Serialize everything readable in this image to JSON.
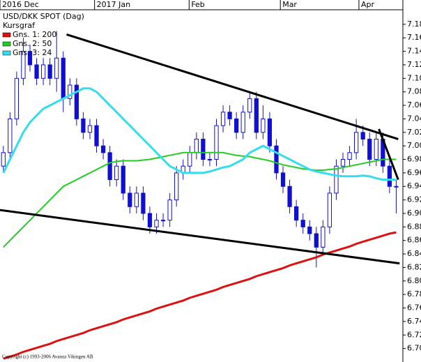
{
  "chart_data": {
    "type": "candlestick",
    "title": "USD/DKK SPOT (Dag)",
    "subtitle": "Kursgraf",
    "footer": "Copyright (c) 1993-2006 Avanza Vikingen AB",
    "xlim": [
      -0.5,
      60
    ],
    "x_labels": [
      {
        "value": -0.5,
        "label": "2016 Dec"
      },
      {
        "value": 13.7,
        "label": "2017 Jan"
      },
      {
        "value": 27.9,
        "label": "Feb"
      },
      {
        "value": 41.6,
        "label": "Mar"
      },
      {
        "value": 53.4,
        "label": "Apr"
      }
    ],
    "ylim": [
      6.68,
      7.216
    ],
    "yticks": [
      {
        "value": 6.7,
        "label": "6.70"
      },
      6.72,
      6.74,
      6.76,
      6.78,
      {
        "value": 6.8,
        "label": "6.80"
      },
      6.82,
      6.84,
      6.86,
      6.88,
      {
        "value": 6.9,
        "label": "6.90"
      },
      6.92,
      6.94,
      6.96,
      6.98,
      {
        "value": 7,
        "label": "7.00"
      },
      7.02,
      7.04,
      7.06,
      7.08,
      {
        "value": 7.1,
        "label": "7.10"
      },
      7.12,
      7.14,
      7.16,
      7.18
    ],
    "up_color": "#ffffff",
    "down_color": "#1010d0",
    "edge_color": "#1010d0",
    "open": [
      6.97,
      6.99,
      7.04,
      7.1,
      7.14,
      7.12,
      7.1,
      7.12,
      7.1,
      7.13,
      7.07,
      7.09,
      7.04,
      7.02,
      7.03,
      7.0,
      6.99,
      6.95,
      6.97,
      6.93,
      6.91,
      6.93,
      6.9,
      6.88,
      6.89,
      6.89,
      6.92,
      6.96,
      6.97,
      6.99,
      7.01,
      6.98,
      6.98,
      7.03,
      7.05,
      7.04,
      7.02,
      7.05,
      7.07,
      7.02,
      7.04,
      7.0,
      6.96,
      6.94,
      6.91,
      6.89,
      6.88,
      6.87,
      6.85,
      6.88,
      6.93,
      6.97,
      6.98,
      6.99,
      7.02,
      7.01,
      6.98,
      7.01,
      6.97,
      6.94
    ],
    "high": [
      7.0,
      7.05,
      7.11,
      7.16,
      7.15,
      7.13,
      7.13,
      7.13,
      7.17,
      7.14,
      7.1,
      7.1,
      7.05,
      7.04,
      7.04,
      7.01,
      7.0,
      6.98,
      6.98,
      6.94,
      6.94,
      6.94,
      6.91,
      6.9,
      6.9,
      6.93,
      6.97,
      6.98,
      7.0,
      7.02,
      7.02,
      6.99,
      7.04,
      7.06,
      7.06,
      7.05,
      7.06,
      7.08,
      7.08,
      7.06,
      7.05,
      7.01,
      6.97,
      6.95,
      6.92,
      6.9,
      6.89,
      6.88,
      6.89,
      6.94,
      6.98,
      6.99,
      7.0,
      7.04,
      7.03,
      7.02,
      7.02,
      7.02,
      6.98,
      6.95
    ],
    "low": [
      6.96,
      6.98,
      7.03,
      7.09,
      7.11,
      7.09,
      7.09,
      7.09,
      7.08,
      7.05,
      7.06,
      7.03,
      7.01,
      7.01,
      6.99,
      6.98,
      6.94,
      6.94,
      6.92,
      6.9,
      6.9,
      6.89,
      6.87,
      6.87,
      6.88,
      6.88,
      6.91,
      6.95,
      6.96,
      6.98,
      6.97,
      6.97,
      6.97,
      7.02,
      7.03,
      7.01,
      7.01,
      7.04,
      7.01,
      7.01,
      6.99,
      6.95,
      6.93,
      6.9,
      6.88,
      6.87,
      6.86,
      6.82,
      6.84,
      6.87,
      6.92,
      6.96,
      6.97,
      6.98,
      7.0,
      6.97,
      6.97,
      6.96,
      6.93,
      6.9
    ],
    "close": [
      6.99,
      7.04,
      7.1,
      7.14,
      7.12,
      7.1,
      7.12,
      7.1,
      7.13,
      7.07,
      7.09,
      7.04,
      7.02,
      7.03,
      7.0,
      6.99,
      6.95,
      6.97,
      6.93,
      6.91,
      6.93,
      6.9,
      6.88,
      6.89,
      6.89,
      6.92,
      6.96,
      6.97,
      6.99,
      7.01,
      6.98,
      6.98,
      7.03,
      7.05,
      7.04,
      7.02,
      7.05,
      7.07,
      7.02,
      7.04,
      7.0,
      6.96,
      6.94,
      6.91,
      6.89,
      6.88,
      6.87,
      6.85,
      6.88,
      6.93,
      6.97,
      6.98,
      6.99,
      7.02,
      7.01,
      6.98,
      7.01,
      6.97,
      6.94,
      6.94
    ],
    "series": [
      {
        "name": "Gns. 1: 200",
        "color": "#dd1111",
        "width": 3,
        "values": [
          6.685,
          6.688,
          6.691,
          6.695,
          6.698,
          6.701,
          6.704,
          6.707,
          6.711,
          6.714,
          6.717,
          6.72,
          6.723,
          6.727,
          6.73,
          6.733,
          6.736,
          6.739,
          6.743,
          6.746,
          6.749,
          6.752,
          6.755,
          6.759,
          6.762,
          6.765,
          6.768,
          6.771,
          6.775,
          6.778,
          6.781,
          6.784,
          6.787,
          6.791,
          6.794,
          6.797,
          6.8,
          6.803,
          6.807,
          6.81,
          6.813,
          6.816,
          6.819,
          6.823,
          6.826,
          6.829,
          6.832,
          6.835,
          6.839,
          6.842,
          6.845,
          6.848,
          6.851,
          6.855,
          6.858,
          6.861,
          6.864,
          6.867,
          6.87,
          6.872
        ]
      },
      {
        "name": "Gns. 2: 50",
        "color": "#22cc22",
        "width": 2,
        "values": [
          6.85,
          6.86,
          6.87,
          6.88,
          6.89,
          6.9,
          6.91,
          6.92,
          6.93,
          6.94,
          6.945,
          6.95,
          6.955,
          6.96,
          6.965,
          6.97,
          6.975,
          6.977,
          6.978,
          6.978,
          6.978,
          6.979,
          6.98,
          6.982,
          6.984,
          6.986,
          6.988,
          6.99,
          6.99,
          6.99,
          6.99,
          6.99,
          6.99,
          6.99,
          6.988,
          6.986,
          6.985,
          6.984,
          6.982,
          6.98,
          6.978,
          6.975,
          6.972,
          6.97,
          6.968,
          6.966,
          6.965,
          6.964,
          6.964,
          6.965,
          6.966,
          6.968,
          6.97,
          6.972,
          6.974,
          6.976,
          6.978,
          6.98,
          6.98,
          6.98
        ]
      },
      {
        "name": "Gns. 3: 24",
        "color": "#33ddee",
        "width": 3,
        "values": [
          6.96,
          6.98,
          7.0,
          7.02,
          7.035,
          7.045,
          7.055,
          7.06,
          7.065,
          7.07,
          7.075,
          7.08,
          7.085,
          7.085,
          7.08,
          7.07,
          7.06,
          7.05,
          7.04,
          7.03,
          7.02,
          7.01,
          7.0,
          6.99,
          6.98,
          6.97,
          6.965,
          6.96,
          6.96,
          6.96,
          6.96,
          6.962,
          6.965,
          6.968,
          6.97,
          6.975,
          6.98,
          6.99,
          6.995,
          7.0,
          6.995,
          6.99,
          6.985,
          6.98,
          6.975,
          6.97,
          6.965,
          6.962,
          6.96,
          6.958,
          6.956,
          6.955,
          6.955,
          6.955,
          6.956,
          6.955,
          6.952,
          6.95,
          6.95,
          6.95
        ]
      }
    ],
    "trendlines": [
      {
        "x": [
          9.5,
          59.3
        ],
        "y": [
          7.165,
          7.01
        ]
      },
      {
        "x": [
          -0.5,
          59.5
        ],
        "y": [
          6.905,
          6.826
        ]
      },
      {
        "x": [
          56.4,
          59.3
        ],
        "y": [
          7.025,
          6.95
        ]
      }
    ]
  }
}
